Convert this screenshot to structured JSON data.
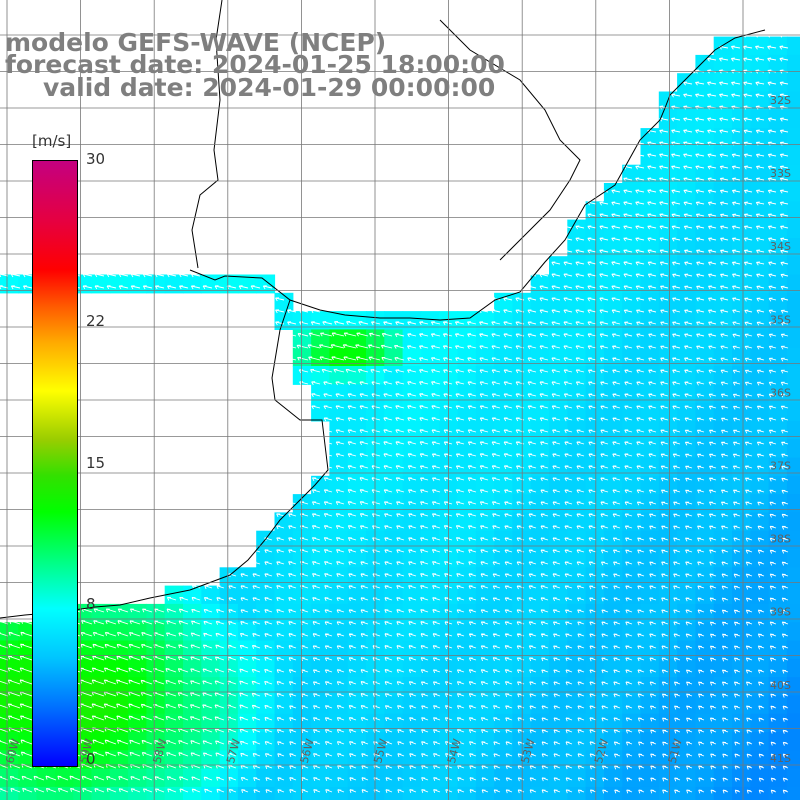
{
  "title": {
    "line1": "modelo GEFS-WAVE (NCEP)",
    "line2": "forecast date: 2024-01-25 18:00:00",
    "line3": "valid date: 2024-01-29 00:00:00"
  },
  "colorbar": {
    "unit": "[m/s]",
    "ticks": [
      "30",
      "22",
      "15",
      "8",
      "0"
    ],
    "tick_values": [
      30,
      22,
      15,
      8,
      0
    ],
    "vmin": 0,
    "vmax": 30,
    "colors": [
      "#0000ff",
      "#0073ff",
      "#00c6ff",
      "#00ffff",
      "#00ff80",
      "#00ff00",
      "#33e000",
      "#9acd00",
      "#ffff00",
      "#ffaa00",
      "#ff5a00",
      "#ff0000",
      "#e60040",
      "#c40080"
    ]
  },
  "map": {
    "variable": "wind speed and direction",
    "lat_labels": [
      "32S",
      "33S",
      "34S",
      "35S",
      "36S",
      "37S",
      "38S",
      "39S",
      "40S",
      "41S"
    ],
    "lon_labels": [
      "60W",
      "59W",
      "58W",
      "57W",
      "56W",
      "55W",
      "54W",
      "53W",
      "52W",
      "51W"
    ],
    "land_color": "#ffffff",
    "coast_color": "#000000",
    "grid_color": "#777777",
    "arrow_color": "#ffffff"
  }
}
